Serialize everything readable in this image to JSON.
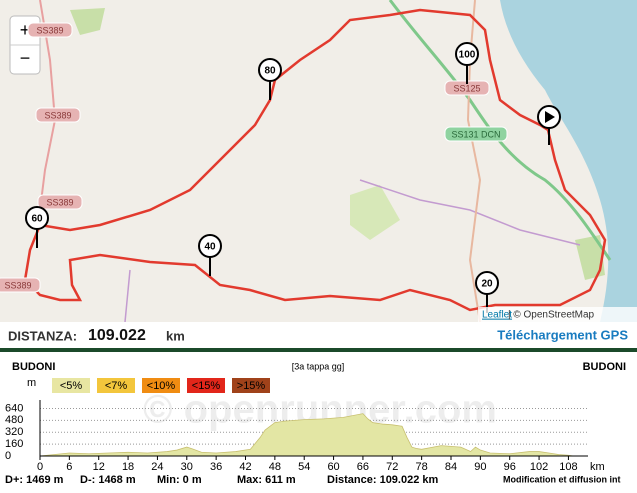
{
  "map": {
    "zoom_in": "+",
    "zoom_out": "−",
    "road_labels": [
      "SS389",
      "SS389",
      "SS389",
      "SS389",
      "SS125",
      "SS131 DCN"
    ],
    "markers": [
      "20",
      "40",
      "60",
      "80",
      "100"
    ],
    "attribution_leaflet": "Leaflet",
    "attribution_osm": "| © OpenStreetMap"
  },
  "summary": {
    "distance_label": "DISTANZA:",
    "distance_value": "109.022",
    "distance_unit": "km",
    "download": "Téléchargement GPS"
  },
  "chart_data": {
    "type": "area",
    "start_label": "BUDONI",
    "title": "[3a tappa gg]",
    "end_label": "BUDONI",
    "y_unit": "m",
    "x_unit": "km",
    "watermark": "© openrunner.com",
    "legend": [
      {
        "label": "<5%",
        "color": "#e8e6a2"
      },
      {
        "label": "<7%",
        "color": "#f3c63c"
      },
      {
        "label": "<10%",
        "color": "#f08c12"
      },
      {
        "label": "<15%",
        "color": "#e2261a"
      },
      {
        "label": ">15%",
        "color": "#a0421a"
      }
    ],
    "x": [
      0,
      3,
      6,
      10,
      14,
      18,
      22,
      26,
      28,
      30,
      31,
      33,
      36,
      40,
      43,
      45,
      46,
      48,
      50,
      54,
      58,
      62,
      66,
      67,
      68,
      70,
      72,
      74,
      75,
      76,
      77,
      78,
      82,
      86,
      88,
      89,
      90,
      92,
      96,
      100,
      102,
      104,
      106,
      108,
      109
    ],
    "series": [
      {
        "name": "Altitude",
        "color": "#e3e6a4",
        "values": [
          0,
          20,
          40,
          30,
          40,
          50,
          40,
          60,
          80,
          120,
          100,
          50,
          40,
          60,
          90,
          250,
          350,
          450,
          470,
          490,
          500,
          520,
          570,
          500,
          450,
          430,
          420,
          400,
          250,
          120,
          100,
          90,
          140,
          120,
          60,
          120,
          80,
          40,
          30,
          60,
          60,
          40,
          20,
          10,
          0
        ]
      }
    ],
    "xlim": [
      0,
      112
    ],
    "ylim": [
      0,
      700
    ],
    "xticks": [
      0,
      6,
      12,
      18,
      24,
      30,
      36,
      42,
      48,
      54,
      60,
      66,
      72,
      78,
      84,
      90,
      96,
      102,
      108
    ],
    "yticks": [
      0,
      160,
      320,
      480,
      640
    ],
    "grid": true,
    "stats": [
      "D+: 1469 m",
      "D-: 1468 m",
      "Min: 0 m",
      "Max: 611 m",
      "Distance: 109.022 km",
      "Modification et diffusion int"
    ]
  }
}
